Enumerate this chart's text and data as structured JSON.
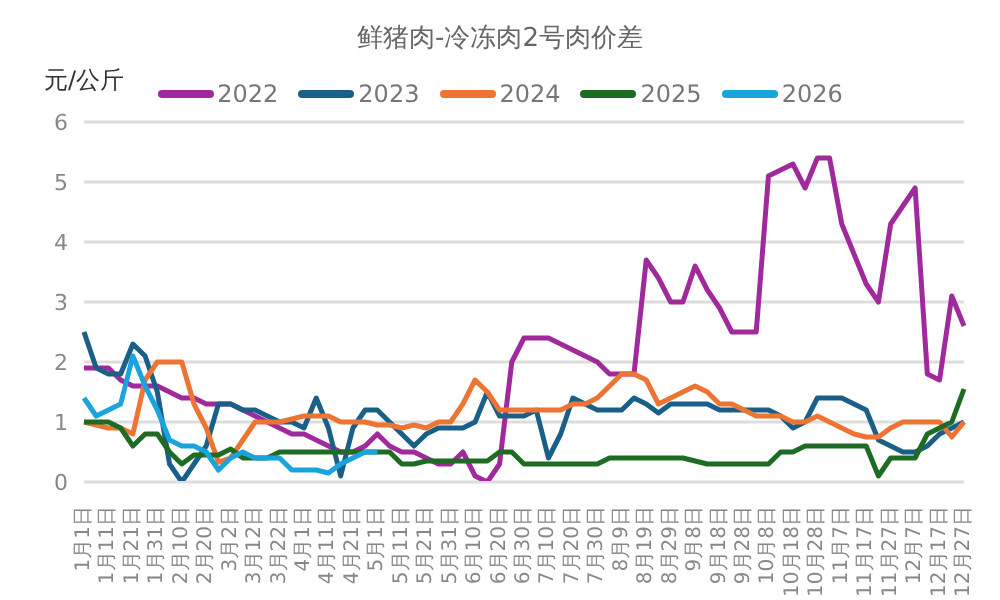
{
  "chart_data": {
    "type": "line",
    "title": "鲜猪肉-冷冻肉2号肉价差",
    "ylabel": "元/公斤",
    "categories": [
      "1月1日",
      null,
      "1月11日",
      null,
      "1月21日",
      null,
      "1月31日",
      null,
      "2月10日",
      null,
      "2月20日",
      null,
      "3月2日",
      null,
      "3月12日",
      null,
      "3月22日",
      null,
      "4月1日",
      null,
      "4月11日",
      null,
      "4月21日",
      null,
      "5月1日",
      null,
      "5月11日",
      null,
      "5月21日",
      null,
      "5月31日",
      null,
      "6月10日",
      null,
      "6月20日",
      null,
      "6月30日",
      null,
      "7月10日",
      null,
      "7月20日",
      null,
      "7月30日",
      null,
      "8月9日",
      null,
      "8月19日",
      null,
      "8月29日",
      null,
      "9月8日",
      null,
      "9月18日",
      null,
      "9月28日",
      null,
      "10月8日",
      null,
      "10月18日",
      null,
      "10月28日",
      null,
      "11月7日",
      null,
      "11月17日",
      null,
      "11月27日",
      null,
      "12月7日",
      null,
      "12月17日",
      null,
      "12月27日"
    ],
    "series": [
      {
        "name": "2022",
        "color": "#a0299c",
        "values": [
          1.9,
          1.9,
          1.9,
          1.7,
          1.6,
          1.6,
          1.6,
          1.5,
          1.4,
          1.4,
          1.3,
          1.3,
          1.3,
          1.2,
          1.1,
          1.0,
          0.9,
          0.8,
          0.8,
          0.7,
          0.6,
          0.5,
          0.5,
          0.6,
          0.8,
          0.6,
          0.5,
          0.5,
          0.4,
          0.3,
          0.3,
          0.5,
          0.1,
          0.0,
          0.3,
          2.0,
          2.4,
          2.4,
          2.4,
          2.3,
          2.2,
          2.1,
          2.0,
          1.8,
          1.8,
          1.8,
          3.7,
          3.4,
          3.0,
          3.0,
          3.6,
          3.2,
          2.9,
          2.5,
          2.5,
          2.5,
          5.1,
          5.2,
          5.3,
          4.9,
          5.4,
          5.4,
          4.3,
          3.8,
          3.3,
          3.0,
          4.3,
          4.6,
          4.9,
          1.8,
          1.7,
          3.1,
          2.6
        ]
      },
      {
        "name": "2023",
        "color": "#1a5f88",
        "values": [
          2.5,
          1.9,
          1.8,
          1.8,
          2.3,
          2.1,
          1.5,
          0.3,
          0.0,
          0.3,
          0.6,
          1.3,
          1.3,
          1.2,
          1.2,
          1.1,
          1.0,
          1.0,
          0.9,
          1.4,
          0.9,
          0.1,
          0.9,
          1.2,
          1.2,
          1.0,
          0.8,
          0.6,
          0.8,
          0.9,
          0.9,
          0.9,
          1.0,
          1.5,
          1.1,
          1.1,
          1.1,
          1.2,
          0.4,
          0.8,
          1.4,
          1.3,
          1.2,
          1.2,
          1.2,
          1.4,
          1.3,
          1.15,
          1.3,
          1.3,
          1.3,
          1.3,
          1.2,
          1.2,
          1.2,
          1.2,
          1.2,
          1.1,
          0.9,
          1.0,
          1.4,
          1.4,
          1.4,
          1.3,
          1.2,
          0.7,
          0.6,
          0.5,
          0.5,
          0.6,
          0.8,
          0.9,
          1.0
        ]
      },
      {
        "name": "2024",
        "color": "#ed7433",
        "values": [
          1.0,
          0.95,
          0.9,
          0.9,
          0.8,
          1.7,
          2.0,
          2.0,
          2.0,
          1.3,
          0.9,
          0.33,
          0.4,
          0.7,
          1.0,
          1.0,
          1.0,
          1.05,
          1.1,
          1.1,
          1.1,
          1.0,
          1.0,
          1.0,
          0.95,
          0.95,
          0.9,
          0.95,
          0.9,
          1.0,
          1.0,
          1.3,
          1.7,
          1.5,
          1.2,
          1.2,
          1.2,
          1.2,
          1.2,
          1.2,
          1.3,
          1.3,
          1.4,
          1.6,
          1.8,
          1.8,
          1.7,
          1.3,
          1.4,
          1.5,
          1.6,
          1.5,
          1.3,
          1.3,
          1.2,
          1.1,
          1.1,
          1.1,
          1.0,
          1.0,
          1.1,
          1.0,
          0.9,
          0.8,
          0.75,
          0.75,
          0.9,
          1.0,
          1.0,
          1.0,
          1.0,
          0.75,
          1.0
        ]
      },
      {
        "name": "2025",
        "color": "#1e6b25",
        "values": [
          1.0,
          1.0,
          1.0,
          0.9,
          0.6,
          0.8,
          0.8,
          0.5,
          0.3,
          0.45,
          0.45,
          0.45,
          0.55,
          0.4,
          0.4,
          0.4,
          0.5,
          0.5,
          0.5,
          0.5,
          0.5,
          0.5,
          0.5,
          0.5,
          0.5,
          0.5,
          0.3,
          0.3,
          0.35,
          0.35,
          0.35,
          0.35,
          0.35,
          0.35,
          0.5,
          0.5,
          0.3,
          0.3,
          0.3,
          0.3,
          0.3,
          0.3,
          0.3,
          0.4,
          0.4,
          0.4,
          0.4,
          0.4,
          0.4,
          0.4,
          0.35,
          0.3,
          0.3,
          0.3,
          0.3,
          0.3,
          0.3,
          0.5,
          0.5,
          0.6,
          0.6,
          0.6,
          0.6,
          0.6,
          0.6,
          0.1,
          0.4,
          0.4,
          0.4,
          0.8,
          0.9,
          1.0,
          1.55
        ]
      },
      {
        "name": "2026",
        "color": "#1aa3dc",
        "values": [
          1.4,
          1.1,
          1.2,
          1.3,
          2.1,
          1.6,
          1.2,
          0.7,
          0.6,
          0.6,
          0.5,
          0.2,
          0.4,
          0.5,
          0.4,
          0.4,
          0.4,
          0.2,
          0.2,
          0.2,
          0.15,
          0.3,
          0.4,
          0.5,
          0.5,
          null,
          null,
          null,
          null,
          null,
          null,
          null,
          null,
          null,
          null,
          null,
          null,
          null,
          null,
          null,
          null,
          null,
          null,
          null,
          null,
          null,
          null,
          null,
          null,
          null,
          null,
          null,
          null,
          null,
          null,
          null,
          null,
          null,
          null,
          null,
          null,
          null,
          null,
          null,
          null,
          null,
          null,
          null,
          null,
          null,
          null,
          null,
          null
        ]
      }
    ],
    "ylim": [
      0,
      6
    ],
    "yticks": [
      0,
      1,
      2,
      3,
      4,
      5,
      6
    ],
    "grid": "y",
    "legend": "top"
  }
}
